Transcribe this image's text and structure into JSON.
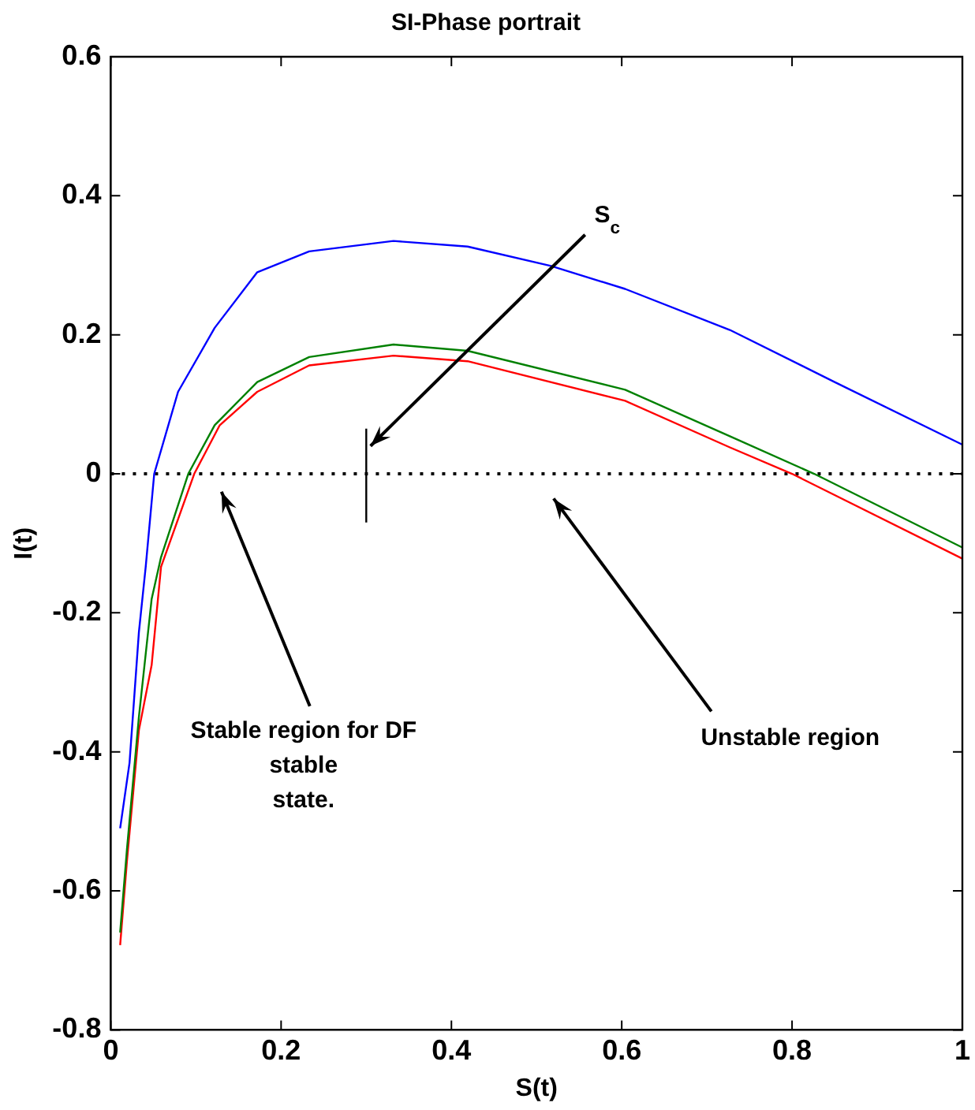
{
  "chart_data": {
    "type": "line",
    "title": "SI-Phase portrait",
    "xlabel": "S(t)",
    "ylabel": "I(t)",
    "xlim": [
      0,
      1
    ],
    "xticks": [
      0,
      0.2,
      0.4,
      0.6,
      0.8,
      1
    ],
    "ylim": [
      -0.8,
      0.6
    ],
    "yticks": [
      -0.8,
      -0.6,
      -0.4,
      -0.2,
      0,
      0.2,
      0.4,
      0.6
    ],
    "grid": false,
    "legend": false,
    "marker": "none",
    "line_style": "solid",
    "series": [
      {
        "color": "#0000ff",
        "x": [
          0.011,
          0.022,
          0.033,
          0.041,
          0.051,
          0.079,
          0.122,
          0.172,
          0.233,
          0.332,
          0.419,
          0.517,
          0.604,
          0.727,
          0.85,
          1.0
        ],
        "values": [
          -0.51,
          -0.416,
          -0.228,
          -0.134,
          0,
          0.118,
          0.21,
          0.29,
          0.32,
          0.335,
          0.327,
          0.299,
          0.266,
          0.207,
          0.132,
          0.042
        ]
      },
      {
        "color": "#008000",
        "x": [
          0.011,
          0.019,
          0.033,
          0.048,
          0.059,
          0.091,
          0.122,
          0.172,
          0.233,
          0.332,
          0.419,
          0.604,
          0.727,
          0.826,
          1.0
        ],
        "values": [
          -0.66,
          -0.54,
          -0.35,
          -0.18,
          -0.12,
          0,
          0.07,
          0.132,
          0.168,
          0.186,
          0.177,
          0.121,
          0.054,
          0,
          -0.106
        ]
      },
      {
        "color": "#ff0000",
        "x": [
          0.011,
          0.019,
          0.033,
          0.048,
          0.059,
          0.098,
          0.128,
          0.172,
          0.233,
          0.332,
          0.419,
          0.604,
          0.727,
          0.8,
          1.0
        ],
        "values": [
          -0.678,
          -0.557,
          -0.369,
          -0.275,
          -0.134,
          0,
          0.07,
          0.118,
          0.156,
          0.17,
          0.162,
          0.105,
          0.038,
          0,
          -0.122
        ]
      },
      {
        "color": "#000000",
        "x": [
          0.3,
          0.3
        ],
        "values": [
          -0.07,
          0.065
        ]
      }
    ],
    "ref_lines": [
      {
        "axis": "y",
        "value": 0,
        "color": "#000000",
        "line_style": "dotted"
      }
    ],
    "annotations": [
      {
        "text": "S$_{c}$",
        "x": 0.305,
        "y": 0.04
      },
      "Stable region for DF\nstable\nstate.",
      "Unstable region"
    ]
  }
}
